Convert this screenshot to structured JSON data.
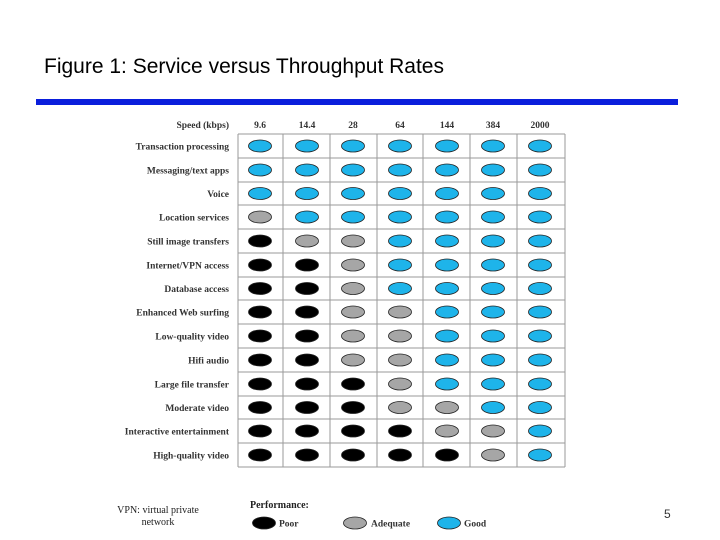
{
  "title": "Figure 1: Service versus Throughput Rates",
  "header_label": "Speed (kbps)",
  "speeds": [
    "9.6",
    "14.4",
    "28",
    "64",
    "144",
    "384",
    "2000"
  ],
  "services": [
    {
      "name": "Transaction processing",
      "ratings": [
        "good",
        "good",
        "good",
        "good",
        "good",
        "good",
        "good"
      ]
    },
    {
      "name": "Messaging/text apps",
      "ratings": [
        "good",
        "good",
        "good",
        "good",
        "good",
        "good",
        "good"
      ]
    },
    {
      "name": "Voice",
      "ratings": [
        "good",
        "good",
        "good",
        "good",
        "good",
        "good",
        "good"
      ]
    },
    {
      "name": "Location services",
      "ratings": [
        "adequate",
        "good",
        "good",
        "good",
        "good",
        "good",
        "good"
      ]
    },
    {
      "name": "Still image transfers",
      "ratings": [
        "poor",
        "adequate",
        "adequate",
        "good",
        "good",
        "good",
        "good"
      ]
    },
    {
      "name": "Internet/VPN access",
      "ratings": [
        "poor",
        "poor",
        "adequate",
        "good",
        "good",
        "good",
        "good"
      ]
    },
    {
      "name": "Database access",
      "ratings": [
        "poor",
        "poor",
        "adequate",
        "good",
        "good",
        "good",
        "good"
      ]
    },
    {
      "name": "Enhanced Web surfing",
      "ratings": [
        "poor",
        "poor",
        "adequate",
        "adequate",
        "good",
        "good",
        "good"
      ]
    },
    {
      "name": "Low-quality video",
      "ratings": [
        "poor",
        "poor",
        "adequate",
        "adequate",
        "good",
        "good",
        "good"
      ]
    },
    {
      "name": "Hifi audio",
      "ratings": [
        "poor",
        "poor",
        "adequate",
        "adequate",
        "good",
        "good",
        "good"
      ]
    },
    {
      "name": "Large file transfer",
      "ratings": [
        "poor",
        "poor",
        "poor",
        "adequate",
        "good",
        "good",
        "good"
      ]
    },
    {
      "name": "Moderate video",
      "ratings": [
        "poor",
        "poor",
        "poor",
        "adequate",
        "adequate",
        "good",
        "good"
      ]
    },
    {
      "name": "Interactive entertainment",
      "ratings": [
        "poor",
        "poor",
        "poor",
        "poor",
        "adequate",
        "adequate",
        "good"
      ]
    },
    {
      "name": "High-quality video",
      "ratings": [
        "poor",
        "poor",
        "poor",
        "poor",
        "poor",
        "adequate",
        "good"
      ]
    }
  ],
  "legend": {
    "title": "Performance:",
    "items": [
      {
        "key": "poor",
        "label": "Poor"
      },
      {
        "key": "adequate",
        "label": "Adequate"
      },
      {
        "key": "good",
        "label": "Good"
      }
    ]
  },
  "colors": {
    "poor": "#000000",
    "adequate": "#a6a6a6",
    "good": "#1eb4ea",
    "accent_bar": "#0a1edc"
  },
  "footnote": "VPN: virtual private network",
  "page_number": "5"
}
